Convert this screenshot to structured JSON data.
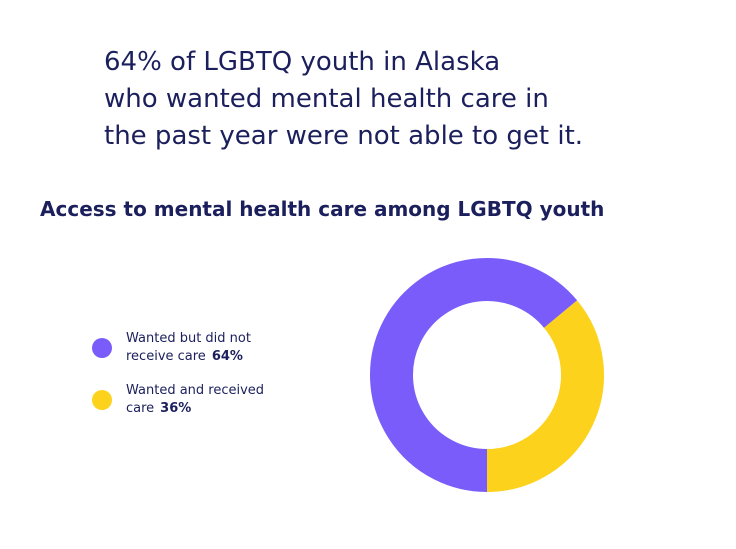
{
  "headline": [
    "64% of LGBTQ youth in Alaska",
    "who wanted mental health care in",
    "the past year were not able to get it."
  ],
  "chart_data": {
    "type": "donut",
    "title": "Access to mental health care among LGBTQ youth",
    "categories": [
      "Wanted but did not receive care",
      "Wanted and received care"
    ],
    "values": [
      64,
      36
    ],
    "value_labels": [
      "64%",
      "36%"
    ],
    "colors": [
      "#7a5cfa",
      "#fdd21c"
    ]
  }
}
